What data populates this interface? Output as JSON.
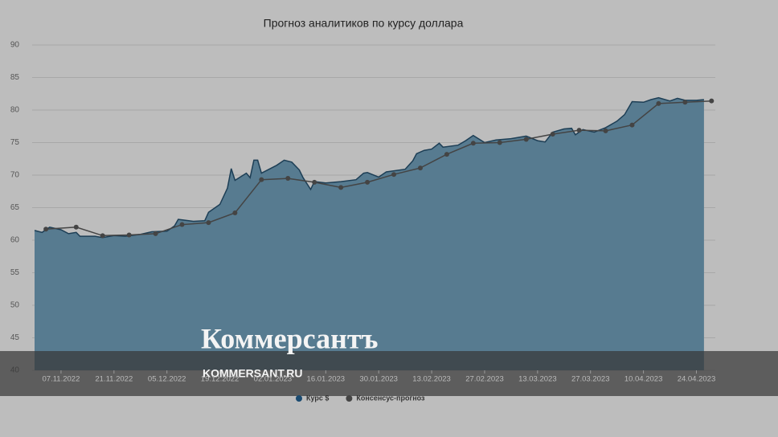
{
  "chart_data": {
    "type": "area-line",
    "title": "Прогноз аналитиков по курсу доллара",
    "xlim": [
      "31.10.2022",
      "29.04.2023"
    ],
    "xticks": [
      "07.11.2022",
      "21.11.2022",
      "05.12.2022",
      "19.12.2022",
      "02.01.2023",
      "16.01.2023",
      "30.01.2023",
      "13.02.2023",
      "27.02.2023",
      "13.03.2023",
      "27.03.2023",
      "10.04.2023",
      "24.04.2023"
    ],
    "ylim": [
      40,
      90
    ],
    "yticks": [
      40,
      45,
      50,
      55,
      60,
      65,
      70,
      75,
      80,
      85,
      90
    ],
    "grid": true,
    "series": [
      {
        "name": "Курс $",
        "color": "#1d3e55",
        "fill": "#577b90",
        "x": [
          "31.10.2022",
          "02.11.2022",
          "04.11.2022",
          "07.11.2022",
          "09.11.2022",
          "11.11.2022",
          "12.11.2022",
          "16.11.2022",
          "18.11.2022",
          "21.11.2022",
          "24.11.2022",
          "28.11.2022",
          "01.12.2022",
          "05.12.2022",
          "07.12.2022",
          "08.12.2022",
          "12.12.2022",
          "15.12.2022",
          "16.12.2022",
          "19.12.2022",
          "21.12.2022",
          "22.12.2022",
          "23.12.2022",
          "26.12.2022",
          "27.12.2022",
          "28.12.2022",
          "29.12.2022",
          "30.12.2022",
          "03.01.2023",
          "05.01.2023",
          "07.01.2023",
          "09.01.2023",
          "10.01.2023",
          "12.01.2023",
          "13.01.2023",
          "16.01.2023",
          "20.01.2023",
          "24.01.2023",
          "26.01.2023",
          "27.01.2023",
          "30.01.2023",
          "01.02.2023",
          "06.02.2023",
          "08.02.2023",
          "09.02.2023",
          "11.02.2023",
          "13.02.2023",
          "15.02.2023",
          "16.02.2023",
          "20.02.2023",
          "22.02.2023",
          "24.02.2023",
          "27.02.2023",
          "02.03.2023",
          "06.03.2023",
          "10.03.2023",
          "13.03.2023",
          "15.03.2023",
          "17.03.2023",
          "20.03.2023",
          "22.03.2023",
          "23.03.2023",
          "25.03.2023",
          "28.03.2023",
          "31.03.2023",
          "03.04.2023",
          "05.04.2023",
          "07.04.2023",
          "10.04.2023",
          "12.04.2023",
          "14.04.2023",
          "17.04.2023",
          "19.04.2023",
          "21.04.2023",
          "24.04.2023",
          "26.04.2023"
        ],
        "values": [
          61.5,
          61.2,
          62.0,
          61.6,
          61.0,
          61.2,
          60.6,
          60.6,
          60.4,
          60.7,
          60.6,
          60.9,
          61.3,
          61.4,
          62.2,
          63.2,
          62.9,
          63.0,
          64.3,
          65.5,
          68.0,
          71.0,
          69.2,
          70.3,
          69.6,
          72.3,
          72.3,
          70.3,
          71.5,
          72.3,
          72.0,
          70.8,
          69.6,
          67.8,
          69.0,
          68.8,
          69.0,
          69.3,
          70.3,
          70.4,
          69.7,
          70.5,
          70.9,
          72.2,
          73.3,
          73.8,
          74.0,
          74.9,
          74.3,
          74.6,
          75.3,
          76.1,
          75.0,
          75.4,
          75.6,
          76.0,
          75.3,
          75.1,
          76.6,
          77.1,
          77.2,
          76.2,
          77.0,
          76.6,
          77.3,
          78.3,
          79.3,
          81.3,
          81.2,
          81.6,
          81.9,
          81.4,
          81.8,
          81.5,
          81.5,
          81.6
        ]
      },
      {
        "name": "Консенсус-прогноз",
        "color": "#444444",
        "x": [
          "03.11.2022",
          "11.11.2022",
          "18.11.2022",
          "25.11.2022",
          "02.12.2022",
          "09.12.2022",
          "16.12.2022",
          "23.12.2022",
          "30.12.2022",
          "06.01.2023",
          "13.01.2023",
          "20.01.2023",
          "27.01.2023",
          "03.02.2023",
          "10.02.2023",
          "17.02.2023",
          "24.02.2023",
          "03.03.2023",
          "10.03.2023",
          "17.03.2023",
          "24.03.2023",
          "31.03.2023",
          "07.04.2023",
          "14.04.2023",
          "21.04.2023",
          "28.04.2023"
        ],
        "values": [
          61.7,
          62.0,
          60.7,
          60.8,
          61.0,
          62.4,
          62.7,
          64.2,
          69.3,
          69.5,
          68.9,
          68.1,
          68.9,
          70.1,
          71.1,
          73.2,
          74.9,
          75.0,
          75.5,
          76.3,
          76.9,
          76.8,
          77.7,
          81.0,
          81.2,
          81.4
        ]
      }
    ]
  },
  "watermark": {
    "logo": "Коммерсантъ",
    "site": "KOMMERSANT.RU"
  }
}
